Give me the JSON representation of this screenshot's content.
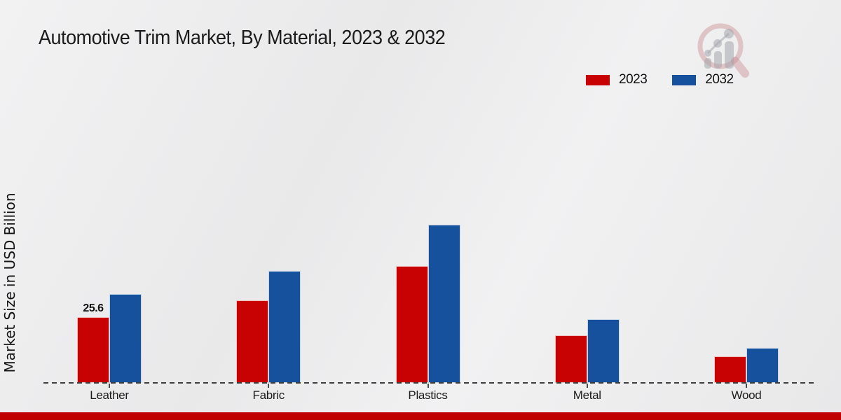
{
  "title": "Automotive Trim Market, By Material, 2023 & 2032",
  "y_axis_label": "Market Size in USD Billion",
  "legend": [
    {
      "label": "2023",
      "color": "#c80202"
    },
    {
      "label": "2032",
      "color": "#15519d"
    }
  ],
  "icons": {
    "watermark": "magnifier-growth-chart-logo"
  },
  "colors": {
    "series_2023": "#c80202",
    "series_2032": "#15519d",
    "footer_band": "#c00000",
    "baseline": "#3d3d3d"
  },
  "chart_data": {
    "type": "bar",
    "title": "Automotive Trim Market, By Material, 2023 & 2032",
    "categories": [
      "Leather",
      "Fabric",
      "Plastics",
      "Metal",
      "Wood"
    ],
    "series": [
      {
        "name": "2023",
        "color": "#c80202",
        "values": [
          25.6,
          32.1,
          45.5,
          18.4,
          10.3
        ]
      },
      {
        "name": "2032",
        "color": "#15519d",
        "values": [
          34.7,
          43.6,
          61.6,
          24.9,
          13.6
        ]
      }
    ],
    "xlabel": "",
    "ylabel": "Market Size in USD Billion",
    "annotations": [
      {
        "series": "2023",
        "category": "Leather",
        "text": "25.6"
      }
    ],
    "legend_position": "top-right",
    "grid": false,
    "y_axis_ticks_visible": false,
    "baseline_style": "dashed"
  }
}
